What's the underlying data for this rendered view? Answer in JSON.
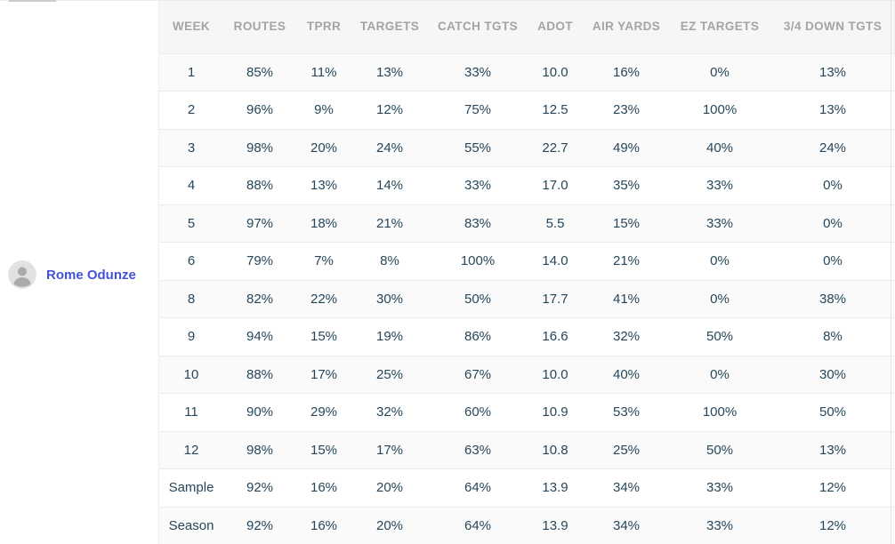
{
  "player": {
    "name": "Rome Odunze"
  },
  "table": {
    "columns": [
      "WEEK",
      "ROUTES",
      "TPRR",
      "TARGETS",
      "CATCH TGTS",
      "ADOT",
      "AIR YARDS",
      "EZ TARGETS",
      "3/4 DOWN TGTS"
    ],
    "rows": [
      [
        "1",
        "85%",
        "11%",
        "13%",
        "33%",
        "10.0",
        "16%",
        "0%",
        "13%"
      ],
      [
        "2",
        "96%",
        "9%",
        "12%",
        "75%",
        "12.5",
        "23%",
        "100%",
        "13%"
      ],
      [
        "3",
        "98%",
        "20%",
        "24%",
        "55%",
        "22.7",
        "49%",
        "40%",
        "24%"
      ],
      [
        "4",
        "88%",
        "13%",
        "14%",
        "33%",
        "17.0",
        "35%",
        "33%",
        "0%"
      ],
      [
        "5",
        "97%",
        "18%",
        "21%",
        "83%",
        "5.5",
        "15%",
        "33%",
        "0%"
      ],
      [
        "6",
        "79%",
        "7%",
        "8%",
        "100%",
        "14.0",
        "21%",
        "0%",
        "0%"
      ],
      [
        "8",
        "82%",
        "22%",
        "30%",
        "50%",
        "17.7",
        "41%",
        "0%",
        "38%"
      ],
      [
        "9",
        "94%",
        "15%",
        "19%",
        "86%",
        "16.6",
        "32%",
        "50%",
        "8%"
      ],
      [
        "10",
        "88%",
        "17%",
        "25%",
        "67%",
        "10.0",
        "40%",
        "0%",
        "30%"
      ],
      [
        "11",
        "90%",
        "29%",
        "32%",
        "60%",
        "10.9",
        "53%",
        "100%",
        "50%"
      ],
      [
        "12",
        "98%",
        "15%",
        "17%",
        "63%",
        "10.8",
        "25%",
        "50%",
        "13%"
      ],
      [
        "Sample",
        "92%",
        "16%",
        "20%",
        "64%",
        "13.9",
        "34%",
        "33%",
        "12%"
      ],
      [
        "Season",
        "92%",
        "16%",
        "20%",
        "64%",
        "13.9",
        "34%",
        "33%",
        "12%"
      ]
    ]
  },
  "colors": {
    "player_name_accent": "#4452d9",
    "header_text": "#a4a4a4",
    "header_background": "#f6f6f6",
    "cell_text": "#26475b",
    "row_stripe": "#fafafa",
    "row_border": "#ececec"
  },
  "icons": {
    "avatar": "person-icon"
  }
}
